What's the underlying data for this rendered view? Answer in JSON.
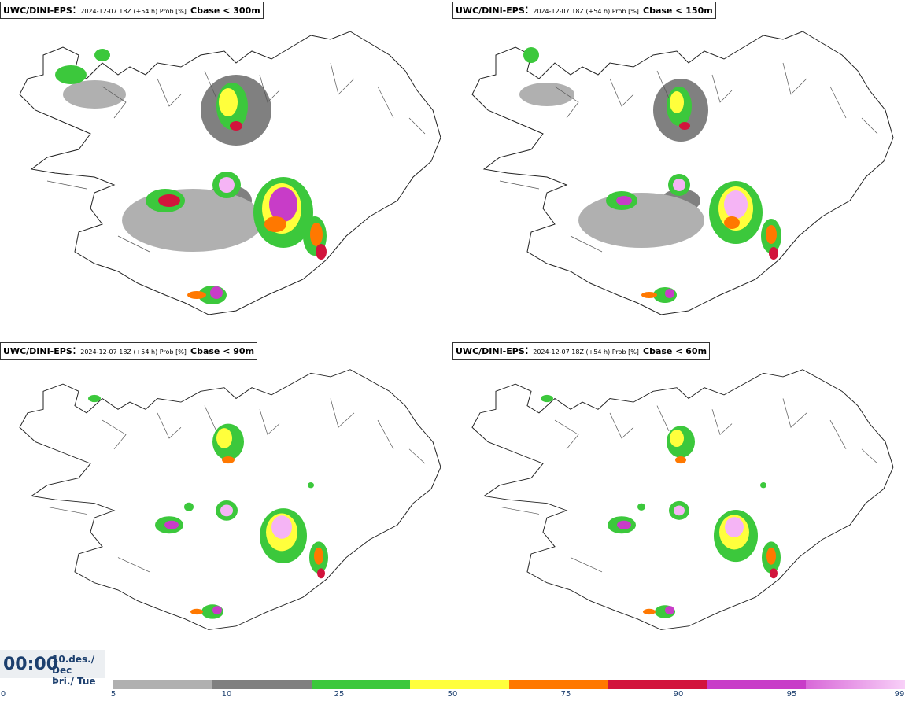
{
  "panels": [
    {
      "model": "UWC/DINI-EPS",
      "meta": "2024-12-07 18Z (+54 h) Prob [%]",
      "variable": "Cbase < 300m"
    },
    {
      "model": "UWC/DINI-EPS",
      "meta": "2024-12-07 18Z (+54 h) Prob [%]",
      "variable": "Cbase < 150m"
    },
    {
      "model": "UWC/DINI-EPS",
      "meta": "2024-12-07 18Z (+54 h) Prob [%]",
      "variable": "Cbase < 90m"
    },
    {
      "model": "UWC/DINI-EPS",
      "meta": "2024-12-07 18Z (+54 h) Prob [%]",
      "variable": "Cbase < 60m"
    }
  ],
  "valid_time": {
    "time": "00:00",
    "date_line1": "10.des./ Dec",
    "date_line2": "Þri./ Tue"
  },
  "colorbar": {
    "colors": [
      "#b0b0b0",
      "#808080",
      "#3cc83c",
      "#ffff3c",
      "#ff7800",
      "#d2143c",
      "#c83cc8",
      "#f5b4f5"
    ],
    "ticks": [
      "0",
      "5",
      "10",
      "25",
      "50",
      "75",
      "90",
      "95",
      "99"
    ]
  },
  "colors": {
    "coast": "#222222",
    "accent": "#1c3f6e"
  }
}
